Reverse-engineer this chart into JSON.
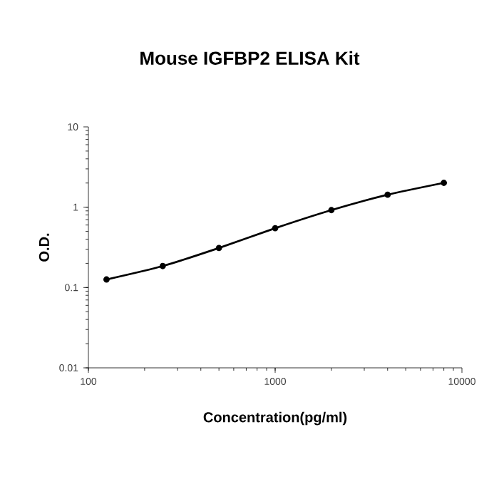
{
  "chart_data": {
    "type": "line",
    "title": "Mouse IGFBP2 ELISA Kit",
    "xlabel": "Concentration(pg/ml)",
    "ylabel": "O.D.",
    "log": "xy",
    "xlim": [
      100,
      10000
    ],
    "xticks": [
      100,
      1000,
      10000
    ],
    "ylim": [
      0.01,
      10
    ],
    "yticks": [
      0.01,
      0.1,
      1,
      10
    ],
    "x": [
      125,
      250,
      500,
      1000,
      2000,
      4000,
      8000
    ],
    "series": [
      {
        "color": "#000000",
        "values": [
          0.126,
          0.185,
          0.311,
          0.548,
          0.92,
          1.43,
          2.01
        ]
      }
    ],
    "marker": "circle",
    "line_style": "solid"
  }
}
